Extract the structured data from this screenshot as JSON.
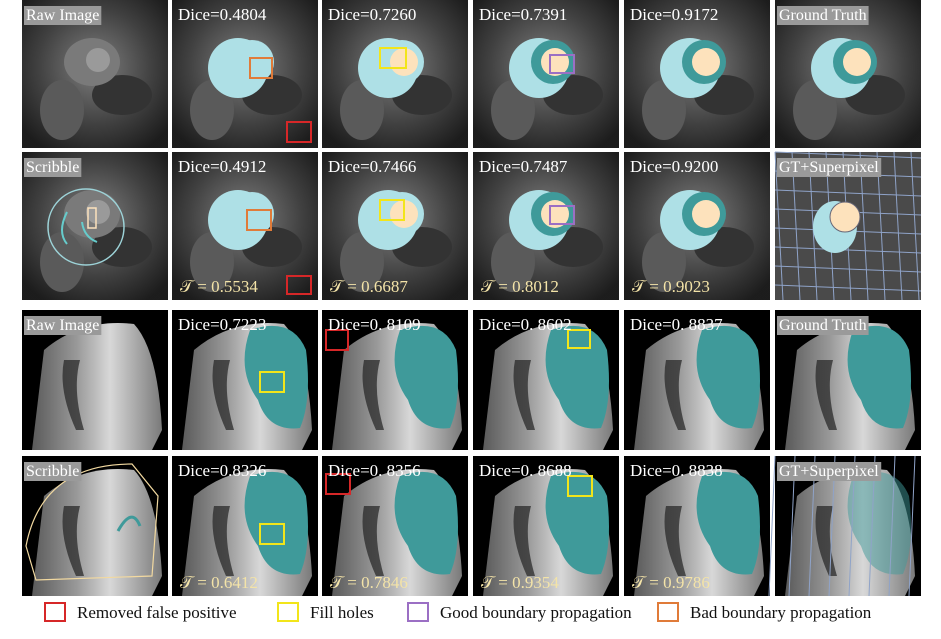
{
  "rows": [
    {
      "tiles": [
        {
          "label": "Raw Image"
        },
        {
          "label": "Dice=0.4804"
        },
        {
          "label": "Dice=0.7260"
        },
        {
          "label": "Dice=0.7391"
        },
        {
          "label": "Dice=0.9172"
        },
        {
          "label": "Ground Truth"
        }
      ]
    },
    {
      "tiles": [
        {
          "label": "Scribble"
        },
        {
          "label": "Dice=0.4912",
          "tau": "𝒯 = 0.5534"
        },
        {
          "label": "Dice=0.7466",
          "tau": "𝒯 = 0.6687"
        },
        {
          "label": "Dice=0.7487",
          "tau": "𝒯 = 0.8012"
        },
        {
          "label": "Dice=0.9200",
          "tau": "𝒯 = 0.9023"
        },
        {
          "label": "GT+Superpixel"
        }
      ]
    },
    {
      "tiles": [
        {
          "label": "Raw Image"
        },
        {
          "label": "Dice=0.7223"
        },
        {
          "label": "Dice=0. 8109"
        },
        {
          "label": "Dice=0. 8602"
        },
        {
          "label": "Dice=0. 8837"
        },
        {
          "label": "Ground Truth"
        }
      ]
    },
    {
      "tiles": [
        {
          "label": "Scribble"
        },
        {
          "label": "Dice=0.8326",
          "tau": "𝒯 = 0.6412"
        },
        {
          "label": "Dice=0. 8356",
          "tau": "𝒯 = 0.7846"
        },
        {
          "label": "Dice=0. 8688",
          "tau": "𝒯 = 0.9354"
        },
        {
          "label": "Dice=0. 8838",
          "tau": "𝒯 = 0.9786"
        },
        {
          "label": "GT+Superpixel"
        }
      ]
    }
  ],
  "legend": [
    {
      "label": "Removed false positive",
      "color": "#d62728"
    },
    {
      "label": "Fill holes",
      "color": "#f2e51a"
    },
    {
      "label": "Good boundary propagation",
      "color": "#9b6fc4"
    },
    {
      "label": "Bad boundary propagation",
      "color": "#e07b39"
    }
  ]
}
